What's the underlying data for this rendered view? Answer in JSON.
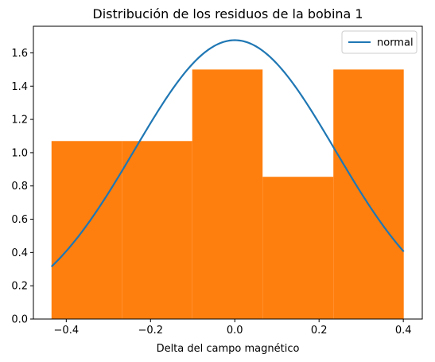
{
  "colors": {
    "bars": "#ff7f0e",
    "curve": "#1f77b4",
    "axes": "#000000",
    "background": "#ffffff"
  },
  "chart_data": {
    "type": "histogram",
    "title": "Distribución de los residuos de la bobina 1",
    "xlabel": "Delta del campo magnético",
    "ylabel": "",
    "xlim": [
      -0.478,
      0.445
    ],
    "ylim": [
      0,
      1.76
    ],
    "x_ticks": [
      -0.4,
      -0.2,
      0.0,
      0.2,
      0.4
    ],
    "y_ticks": [
      0.0,
      0.2,
      0.4,
      0.6,
      0.8,
      1.0,
      1.2,
      1.4,
      1.6
    ],
    "bins": [
      {
        "x0": -0.435,
        "x1": -0.268,
        "value": 1.07
      },
      {
        "x0": -0.268,
        "x1": -0.101,
        "value": 1.07
      },
      {
        "x0": -0.101,
        "x1": 0.066,
        "value": 1.5
      },
      {
        "x0": 0.066,
        "x1": 0.234,
        "value": 0.855
      },
      {
        "x0": 0.234,
        "x1": 0.401,
        "value": 1.5
      }
    ],
    "series": [
      {
        "name": "normal",
        "type": "line",
        "distribution": "normal",
        "mean": 0.0,
        "std": 0.238,
        "x_range": [
          -0.435,
          0.401
        ]
      }
    ],
    "legend": {
      "position": "top-right",
      "entries": [
        "normal"
      ]
    },
    "grid": false
  }
}
